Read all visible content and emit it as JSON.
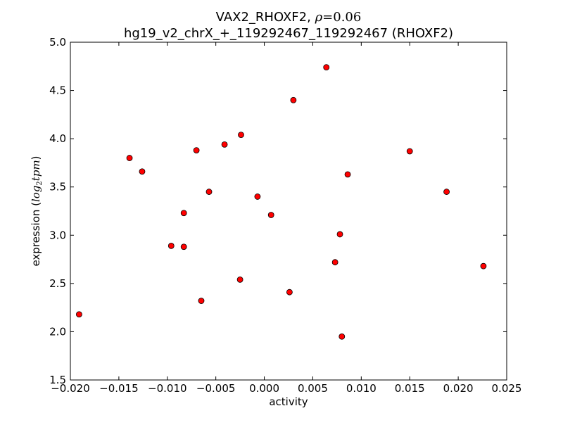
{
  "chart_data": {
    "type": "scatter",
    "title_line1_prefix": "VAX2_RHOXF2, ",
    "title_rho_symbol": "ρ",
    "title_rho_equals": "=",
    "title_rho_value": "0.06",
    "title_line2": "hg19_v2_chrX_+_119292467_119292467 (RHOXF2)",
    "xlabel": "activity",
    "ylabel_prefix": "expression (",
    "ylabel_math": "log",
    "ylabel_sub": "2",
    "ylabel_math2": "tpm",
    "ylabel_suffix": ")",
    "xlim": [
      -0.02,
      0.025
    ],
    "ylim": [
      1.5,
      5.0
    ],
    "x_ticks": [
      -0.02,
      -0.015,
      -0.01,
      -0.005,
      0.0,
      0.005,
      0.01,
      0.015,
      0.02,
      0.025
    ],
    "x_tick_labels": [
      "−0.020",
      "−0.015",
      "−0.010",
      "−0.005",
      "0.000",
      "0.005",
      "0.010",
      "0.015",
      "0.020",
      "0.025"
    ],
    "y_ticks": [
      1.5,
      2.0,
      2.5,
      3.0,
      3.5,
      4.0,
      4.5,
      5.0
    ],
    "y_tick_labels": [
      "1.5",
      "2.0",
      "2.5",
      "3.0",
      "3.5",
      "4.0",
      "4.5",
      "5.0"
    ],
    "marker_color": "#ff0000",
    "points": [
      {
        "x": 0.0064,
        "y": 4.74
      },
      {
        "x": 0.003,
        "y": 4.4
      },
      {
        "x": -0.0024,
        "y": 4.04
      },
      {
        "x": -0.0041,
        "y": 3.94
      },
      {
        "x": -0.007,
        "y": 3.88
      },
      {
        "x": 0.015,
        "y": 3.87
      },
      {
        "x": -0.0139,
        "y": 3.8
      },
      {
        "x": -0.0126,
        "y": 3.66
      },
      {
        "x": 0.0086,
        "y": 3.63
      },
      {
        "x": -0.0057,
        "y": 3.45
      },
      {
        "x": 0.0188,
        "y": 3.45
      },
      {
        "x": -0.0007,
        "y": 3.4
      },
      {
        "x": -0.0083,
        "y": 3.23
      },
      {
        "x": 0.0007,
        "y": 3.21
      },
      {
        "x": 0.0078,
        "y": 3.01
      },
      {
        "x": -0.0096,
        "y": 2.89
      },
      {
        "x": -0.0083,
        "y": 2.88
      },
      {
        "x": 0.0073,
        "y": 2.72
      },
      {
        "x": 0.0226,
        "y": 2.68
      },
      {
        "x": -0.0025,
        "y": 2.54
      },
      {
        "x": 0.0026,
        "y": 2.41
      },
      {
        "x": -0.0065,
        "y": 2.32
      },
      {
        "x": -0.0191,
        "y": 2.18
      },
      {
        "x": 0.008,
        "y": 1.95
      }
    ]
  }
}
